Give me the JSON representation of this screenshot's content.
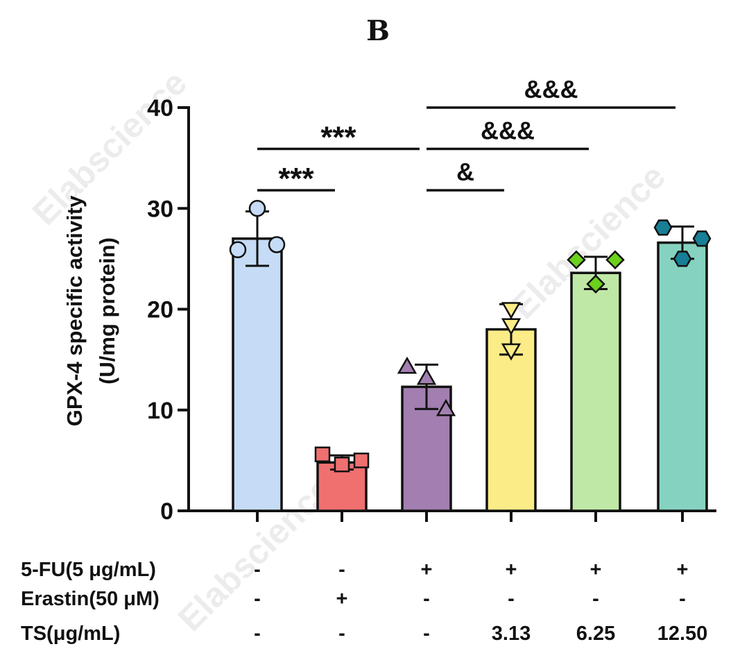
{
  "panel_label": "B",
  "watermark": "Elabscience",
  "chart_data": {
    "type": "bar",
    "ylabel_line1": "GPX-4 specific activity",
    "ylabel_line2": "(U/mg protein)",
    "ylim": [
      0,
      40
    ],
    "yticks": [
      "0",
      "10",
      "20",
      "30",
      "40"
    ],
    "grid": false,
    "legend": "none",
    "series": [
      {
        "values": [
          27.0,
          4.8,
          12.3,
          18.0,
          23.6,
          26.6
        ],
        "errors": [
          2.7,
          0.7,
          2.2,
          2.5,
          1.6,
          1.6
        ],
        "colors": [
          "#c6dcf6",
          "#f07070",
          "#a27fb0",
          "#fbec87",
          "#bfe8a6",
          "#86d2c0"
        ],
        "markers": [
          "circle",
          "square",
          "triangle",
          "triangle-down",
          "diamond",
          "hexagon"
        ],
        "marker_colors": [
          "#c6dcf6",
          "#f07070",
          "#a27fb0",
          "#fbec87",
          "#6bd11c",
          "#177f96"
        ],
        "points": [
          [
            30.0,
            25.9,
            26.4
          ],
          [
            5.6,
            4.6,
            5.0
          ],
          [
            14.3,
            13.2,
            10.1
          ],
          [
            20.0,
            18.4,
            15.9
          ],
          [
            24.9,
            24.9,
            22.5
          ],
          [
            28.1,
            27.0,
            25.0
          ]
        ]
      }
    ],
    "conditions": [
      {
        "label": "5-FU(5 μg/mL)",
        "values": [
          "-",
          "-",
          "+",
          "+",
          "+",
          "+"
        ]
      },
      {
        "label": "Erastin(50 μM)",
        "values": [
          "-",
          "+",
          "-",
          "-",
          "-",
          "-"
        ]
      },
      {
        "label": "TS(μg/mL)",
        "values": [
          "-",
          "-",
          "-",
          "3.13",
          "6.25",
          "12.50"
        ]
      }
    ],
    "significance": [
      {
        "from": 0,
        "to": 1,
        "label": "***",
        "y": 31.8
      },
      {
        "from": 0,
        "to": 2,
        "label": "***",
        "y": 35.9
      },
      {
        "from": 2,
        "to": 3,
        "label": "&",
        "y": 31.8
      },
      {
        "from": 2,
        "to": 4,
        "label": "&&&",
        "y": 35.9
      },
      {
        "from": 2,
        "to": 5,
        "label": "&&&",
        "y": 40.0
      }
    ]
  }
}
